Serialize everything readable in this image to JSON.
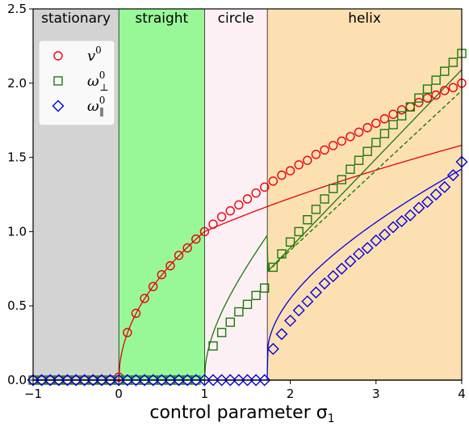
{
  "chart_data": {
    "type": "line",
    "title": "",
    "xlabel": "control parameter σ",
    "xlabel_subscript": "1",
    "ylabel": "",
    "xlim": [
      -1,
      4
    ],
    "ylim": [
      0,
      2.5
    ],
    "xticks": [
      -1,
      0,
      1,
      2,
      3,
      4
    ],
    "xtick_labels": [
      "−1",
      "0",
      "1",
      "2",
      "3",
      "4"
    ],
    "yticks": [
      0,
      0.5,
      1.0,
      1.5,
      2.0,
      2.5
    ],
    "ytick_labels": [
      "0.0",
      "0.5",
      "1.0",
      "1.5",
      "2.0",
      "2.5"
    ],
    "grid": false,
    "legend_position": "top-left",
    "regions": [
      {
        "label": "stationary",
        "x0": -1,
        "x1": 0,
        "color": "#d3d3d3"
      },
      {
        "label": "straight",
        "x0": 0,
        "x1": 1,
        "color": "#98f898"
      },
      {
        "label": "circle",
        "x0": 1,
        "x1": 1.732,
        "color": "#fdf0f5"
      },
      {
        "label": "helix",
        "x0": 1.732,
        "x1": 4,
        "color": "#fde0b2"
      }
    ],
    "series": [
      {
        "name": "v",
        "name_sup": "0",
        "name_sub": "",
        "color": "#e8000b",
        "marker": "circle",
        "curve": "v",
        "x": [
          -1,
          -0.9,
          -0.8,
          -0.7,
          -0.6,
          -0.5,
          -0.4,
          -0.3,
          -0.2,
          -0.1,
          0,
          0.1,
          0.2,
          0.3,
          0.4,
          0.5,
          0.6,
          0.7,
          0.8,
          0.9,
          1.0,
          1.1,
          1.2,
          1.3,
          1.4,
          1.5,
          1.6,
          1.7,
          1.8,
          1.9,
          2.0,
          2.1,
          2.2,
          2.3,
          2.4,
          2.5,
          2.6,
          2.7,
          2.8,
          2.9,
          3.0,
          3.1,
          3.2,
          3.3,
          3.4,
          3.5,
          3.6,
          3.7,
          3.8,
          3.9,
          4.0
        ],
        "y": [
          0,
          0,
          0,
          0,
          0,
          0,
          0,
          0,
          0,
          0,
          0.02,
          0.32,
          0.45,
          0.55,
          0.63,
          0.71,
          0.77,
          0.84,
          0.89,
          0.95,
          1.0,
          1.05,
          1.1,
          1.14,
          1.18,
          1.22,
          1.26,
          1.3,
          1.34,
          1.38,
          1.41,
          1.45,
          1.48,
          1.52,
          1.55,
          1.58,
          1.61,
          1.64,
          1.67,
          1.7,
          1.73,
          1.76,
          1.79,
          1.82,
          1.84,
          1.87,
          1.9,
          1.92,
          1.95,
          1.97,
          2.0
        ]
      },
      {
        "name": "ω",
        "name_sup": "0",
        "name_sub": "⊥",
        "color": "#1a7a0a",
        "marker": "square",
        "curve": "wperp",
        "x": [
          -1,
          -0.9,
          -0.8,
          -0.7,
          -0.6,
          -0.5,
          -0.4,
          -0.3,
          -0.2,
          -0.1,
          0,
          0.1,
          0.2,
          0.3,
          0.4,
          0.5,
          0.6,
          0.7,
          0.8,
          0.9,
          1.1,
          1.2,
          1.3,
          1.4,
          1.5,
          1.6,
          1.7,
          1.8,
          1.9,
          2.0,
          2.1,
          2.2,
          2.3,
          2.4,
          2.5,
          2.6,
          2.7,
          2.8,
          2.9,
          3.0,
          3.1,
          3.2,
          3.3,
          3.4,
          3.5,
          3.6,
          3.7,
          3.8,
          3.9,
          4.0
        ],
        "y": [
          0,
          0,
          0,
          0,
          0,
          0,
          0,
          0,
          0,
          0,
          0,
          0,
          0,
          0,
          0,
          0,
          0,
          0,
          0,
          0,
          0.23,
          0.32,
          0.39,
          0.46,
          0.51,
          0.57,
          0.62,
          0.76,
          0.85,
          0.93,
          1.0,
          1.08,
          1.15,
          1.22,
          1.29,
          1.35,
          1.42,
          1.48,
          1.54,
          1.6,
          1.66,
          1.72,
          1.78,
          1.84,
          1.9,
          1.96,
          2.02,
          2.08,
          2.14,
          2.2
        ]
      },
      {
        "name": "ω",
        "name_sup": "0",
        "name_sub": "∥",
        "color": "#0000e0",
        "marker": "diamond",
        "curve": "wpar",
        "x": [
          -1,
          -0.9,
          -0.8,
          -0.7,
          -0.6,
          -0.5,
          -0.4,
          -0.3,
          -0.2,
          -0.1,
          0,
          0.1,
          0.2,
          0.3,
          0.4,
          0.5,
          0.6,
          0.7,
          0.8,
          0.9,
          1.0,
          1.1,
          1.2,
          1.3,
          1.4,
          1.5,
          1.6,
          1.7,
          1.8,
          1.9,
          2.0,
          2.1,
          2.2,
          2.3,
          2.4,
          2.5,
          2.6,
          2.7,
          2.8,
          2.9,
          3.0,
          3.1,
          3.2,
          3.3,
          3.4,
          3.5,
          3.6,
          3.7,
          3.8,
          3.9,
          4.0
        ],
        "y": [
          0,
          0,
          0,
          0,
          0,
          0,
          0,
          0,
          0,
          0,
          0,
          0,
          0,
          0,
          0,
          0,
          0,
          0,
          0,
          0,
          0,
          0,
          0,
          0,
          0,
          0,
          0,
          0,
          0.21,
          0.31,
          0.4,
          0.47,
          0.53,
          0.59,
          0.65,
          0.7,
          0.75,
          0.8,
          0.85,
          0.89,
          0.94,
          0.98,
          1.03,
          1.07,
          1.11,
          1.16,
          1.2,
          1.25,
          1.3,
          1.38,
          1.47
        ]
      }
    ],
    "reference_line": {
      "color": "#1a7a0a",
      "style": "dashed",
      "x": [
        1.732,
        4.0
      ],
      "y": [
        0.73,
        1.95
      ]
    }
  }
}
